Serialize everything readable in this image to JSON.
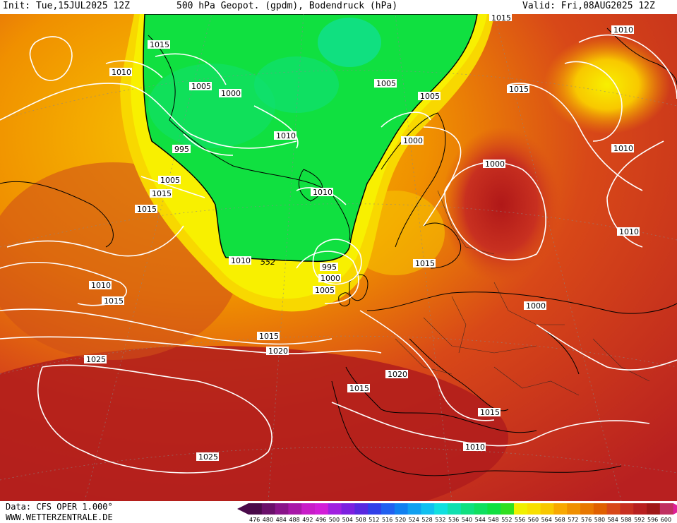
{
  "header": {
    "init": "Init: Tue,15JUL2025 12Z",
    "title": "500 hPa Geopot. (gpdm), Bodendruck (hPa)",
    "valid": "Valid: Fri,08AUG2025 12Z"
  },
  "footer": {
    "data_source": "Data: CFS OPER 1.000°",
    "website": "WWW.WETTERZENTRALE.DE"
  },
  "colorbar": {
    "labels": [
      "476",
      "480",
      "484",
      "488",
      "492",
      "496",
      "500",
      "504",
      "508",
      "512",
      "516",
      "520",
      "524",
      "528",
      "532",
      "536",
      "540",
      "544",
      "548",
      "552",
      "556",
      "560",
      "564",
      "568",
      "572",
      "576",
      "580",
      "584",
      "588",
      "592",
      "596",
      "600"
    ],
    "colors": [
      "#4a0a4a",
      "#6a0f6a",
      "#8a148a",
      "#a818a8",
      "#c81cc8",
      "#d21ed8",
      "#a020e0",
      "#7c20e0",
      "#5828e0",
      "#3040e8",
      "#2060f0",
      "#1080f0",
      "#10a0f0",
      "#10c0f0",
      "#10e0e0",
      "#10e0b0",
      "#10e080",
      "#10e060",
      "#10e040",
      "#30e020",
      "#f0f000",
      "#f8e000",
      "#f8c800",
      "#f8a800",
      "#f09000",
      "#e87800",
      "#e06000",
      "#d84818",
      "#c83020",
      "#b82020",
      "#a01818",
      "#c03060"
    ]
  },
  "isobar_labels": [
    "1015",
    "1015",
    "1010",
    "1010",
    "1005",
    "1000",
    "995",
    "1010",
    "1005",
    "1010",
    "1015",
    "1005",
    "1000",
    "1005",
    "1000",
    "1015",
    "1020",
    "1015",
    "1010",
    "1010",
    "1010",
    "995",
    "1000",
    "1005",
    "552",
    "1015",
    "1010",
    "1015",
    "1015",
    "1020",
    "1025",
    "1020",
    "1015",
    "1015",
    "1010",
    "1025",
    "1000",
    "1010"
  ]
}
